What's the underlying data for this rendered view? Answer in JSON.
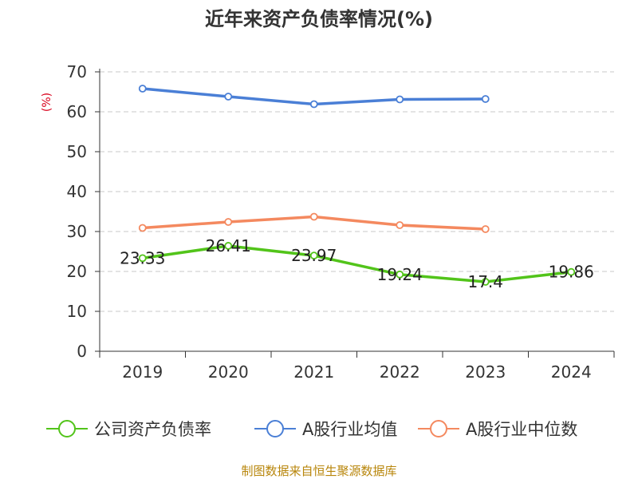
{
  "chart_data": {
    "type": "line",
    "title": "近年来资产负债率情况(%)",
    "ylabel": "(%)",
    "xlabel": "",
    "ylim": [
      0,
      70
    ],
    "yticks": [
      0,
      10,
      20,
      30,
      40,
      50,
      60,
      70
    ],
    "categories": [
      "2019",
      "2020",
      "2021",
      "2022",
      "2023",
      "2024"
    ],
    "grid": true,
    "legend_position": "bottom",
    "series": [
      {
        "name": "公司资产负债率",
        "color": "#52c41a",
        "values": [
          23.33,
          26.41,
          23.97,
          19.24,
          17.4,
          19.86
        ],
        "labels": [
          "23.33",
          "26.41",
          "23.97",
          "19.24",
          "17.4",
          "19.86"
        ]
      },
      {
        "name": "A股行业均值",
        "color": "#4a7fd6",
        "values": [
          65.8,
          63.8,
          61.9,
          63.1,
          63.2,
          null
        ]
      },
      {
        "name": "A股行业中位数",
        "color": "#f4895f",
        "values": [
          30.9,
          32.4,
          33.7,
          31.6,
          30.6,
          null
        ]
      }
    ],
    "source": "制图数据来自恒生聚源数据库"
  }
}
